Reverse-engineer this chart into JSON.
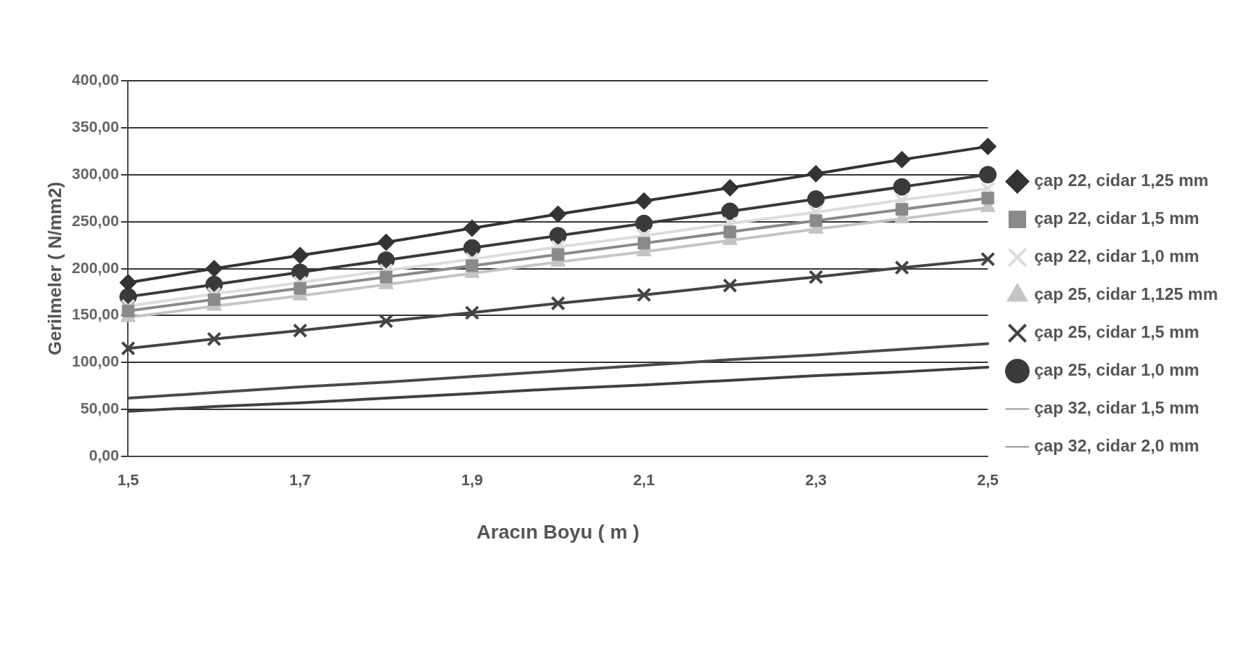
{
  "chart_data": {
    "type": "line",
    "xlabel": "Aracın Boyu ( m )",
    "ylabel": "Gerilmeler ( N/mm2)",
    "categories": [
      "1,5",
      null,
      "1,7",
      null,
      "1,9",
      null,
      "2,1",
      null,
      "2,3",
      null,
      "2,5"
    ],
    "ylim": [
      0,
      400
    ],
    "yticks": [
      {
        "value": 0,
        "label": "0,00"
      },
      {
        "value": 50,
        "label": "50,00"
      },
      {
        "value": 100,
        "label": "100,00"
      },
      {
        "value": 150,
        "label": "150,00"
      },
      {
        "value": 200,
        "label": "200,00"
      },
      {
        "value": 250,
        "label": "250,00"
      },
      {
        "value": 300,
        "label": "300,00"
      },
      {
        "value": 350,
        "label": "350,00"
      },
      {
        "value": 400,
        "label": "400,00"
      }
    ],
    "grid": "y",
    "legend": "right",
    "line_style": "solid",
    "series": [
      {
        "name": "çap 22, cidar 1,25 mm",
        "color": "#333333",
        "marker": "diamond",
        "values": [
          185,
          200,
          214,
          228,
          243,
          258,
          272,
          286,
          301,
          316,
          330
        ]
      },
      {
        "name": "çap 22, cidar 1,5 mm",
        "color": "#8a8a8a",
        "marker": "square",
        "values": [
          155,
          167,
          179,
          191,
          203,
          215,
          227,
          239,
          251,
          263,
          275
        ]
      },
      {
        "name": "çap 22, cidar 1,0 mm",
        "color": "#dcdcdc",
        "marker": "cross",
        "values": [
          160,
          173,
          185,
          198,
          210,
          223,
          235,
          248,
          260,
          273,
          285
        ]
      },
      {
        "name": "çap 25, cidar 1,125 mm",
        "color": "#c4c4c4",
        "marker": "triangle",
        "values": [
          148,
          160,
          171,
          183,
          195,
          207,
          218,
          230,
          242,
          253,
          265
        ]
      },
      {
        "name": "çap 25, cidar 1,5 mm",
        "color": "#444444",
        "marker": "cross",
        "values": [
          115,
          125,
          134,
          144,
          153,
          163,
          172,
          182,
          191,
          201,
          210
        ]
      },
      {
        "name": "çap 25, cidar 1,0 mm",
        "color": "#3a3a3a",
        "marker": "circle",
        "values": [
          170,
          183,
          196,
          209,
          222,
          235,
          248,
          261,
          274,
          287,
          300
        ]
      },
      {
        "name": "çap 32, cidar 1,5 mm",
        "color": "#4a4a4a",
        "marker": "none",
        "values": [
          62,
          68,
          74,
          79,
          85,
          91,
          97,
          103,
          108,
          114,
          120
        ]
      },
      {
        "name": "çap 32, cidar 2,0 mm",
        "color": "#404040",
        "marker": "none",
        "values": [
          48,
          53,
          57,
          62,
          67,
          72,
          76,
          81,
          86,
          90,
          95
        ]
      }
    ]
  }
}
